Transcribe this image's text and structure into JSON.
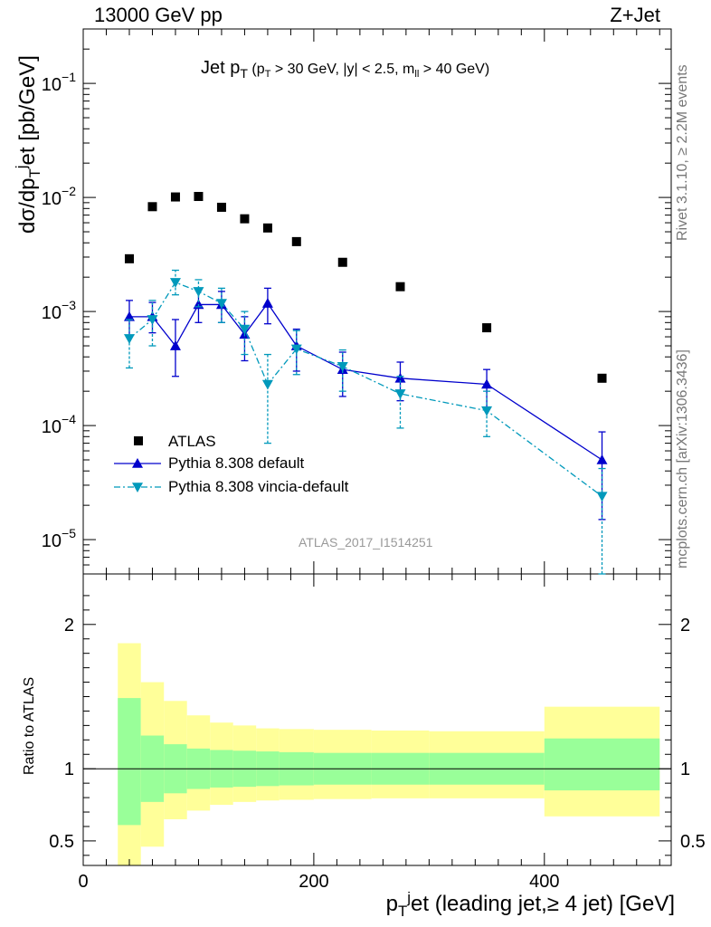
{
  "header": {
    "energy_label": "13000 GeV pp",
    "process_label": "Z+Jet"
  },
  "side_notes": {
    "rivet": "Rivet 3.1.10, ≥ 2.2M events",
    "mcplots": "mcplots.cern.ch [arXiv:1306.3436]"
  },
  "plot_title": {
    "main": "Jet p",
    "main_sub": "T",
    "cuts_open": " (p",
    "cuts_sub": "T",
    "cuts_rest": " > 30 GeV, |y| < 2.5, m",
    "cuts_sub2": "ll",
    "cuts_end": " > 40 GeV)"
  },
  "watermark": "ATLAS_2017_I1514251",
  "axis_labels": {
    "y_main": "dσ/dp",
    "y_main_sub": "T",
    "y_main_sup": "j",
    "y_main_rest": "et [pb/GeV]",
    "y_ratio": "Ratio to ATLAS",
    "x_pre": "p",
    "x_sub": "T",
    "x_sup": "j",
    "x_rest": "et (leading jet,≥ 4 jet) [GeV]"
  },
  "colors": {
    "atlas": "#000000",
    "pythia_default": "#0000cc",
    "pythia_vincia": "#0099bb",
    "band_inner": "#99ff99",
    "band_outer": "#ffff99"
  },
  "chart_data": [
    {
      "type": "scatter",
      "panel": "main",
      "yscale": "log",
      "xlim": [
        0,
        510
      ],
      "ylim": [
        5e-06,
        0.3
      ],
      "x_ticks": [
        0,
        200,
        400
      ],
      "y_ticks": [
        {
          "value": 1e-05,
          "base": "10",
          "exp": "−5"
        },
        {
          "value": 0.0001,
          "base": "10",
          "exp": "−4"
        },
        {
          "value": 0.001,
          "base": "10",
          "exp": "−3"
        },
        {
          "value": 0.01,
          "base": "10",
          "exp": "−2"
        },
        {
          "value": 0.1,
          "base": "10",
          "exp": "−1"
        }
      ],
      "series": [
        {
          "name": "ATLAS",
          "style": "square",
          "x": [
            40,
            60,
            80,
            100,
            120,
            140,
            160,
            185,
            225,
            275,
            350,
            450
          ],
          "y": [
            0.0029,
            0.0083,
            0.0101,
            0.0102,
            0.0082,
            0.0065,
            0.0054,
            0.0041,
            0.0027,
            0.00165,
            0.00072,
            0.00026
          ]
        },
        {
          "name": "Pythia 8.308 default",
          "style": "triangle-up-solid",
          "x": [
            40,
            60,
            80,
            100,
            120,
            140,
            160,
            185,
            225,
            275,
            350,
            450
          ],
          "y": [
            0.0009,
            0.0009,
            0.0005,
            0.00115,
            0.00115,
            0.00063,
            0.00118,
            0.0005,
            0.00031,
            0.00026,
            0.00023,
            5e-05
          ],
          "err_low": [
            0.0006,
            0.00065,
            0.00027,
            0.0008,
            0.0008,
            0.00037,
            0.00078,
            0.0003,
            0.00018,
            0.000165,
            0.000145,
            1.5e-05
          ],
          "err_high": [
            0.00125,
            0.0012,
            0.00085,
            0.00155,
            0.0015,
            0.0009,
            0.0016,
            0.0007,
            0.00044,
            0.00036,
            0.00031,
            8.8e-05
          ]
        },
        {
          "name": "Pythia 8.308 vincia-default",
          "style": "triangle-down-dashdot",
          "x": [
            40,
            60,
            80,
            100,
            120,
            140,
            160,
            185,
            225,
            275,
            350,
            450
          ],
          "y": [
            0.00058,
            0.00085,
            0.0018,
            0.0015,
            0.00118,
            0.0007,
            0.00023,
            0.00047,
            0.00033,
            0.00019,
            0.000135,
            2.4e-05
          ],
          "err_low": [
            0.00032,
            0.0005,
            0.0014,
            0.0011,
            0.0008,
            0.00042,
            7e-05,
            0.00028,
            0.0002,
            9.5e-05,
            8e-05,
            4e-06
          ],
          "err_high": [
            0.00085,
            0.00125,
            0.0023,
            0.0019,
            0.0016,
            0.001,
            0.00042,
            0.00068,
            0.00046,
            0.00027,
            0.0002,
            4.2e-05
          ]
        }
      ]
    },
    {
      "type": "area",
      "panel": "ratio",
      "xlim": [
        0,
        510
      ],
      "ylim": [
        0.33,
        2.35
      ],
      "x_ticks": [
        0,
        200,
        400
      ],
      "y_ticks": [
        0.5,
        1,
        2
      ],
      "reference_line": 1,
      "bins": [
        {
          "x0": 30,
          "x1": 50,
          "inner": [
            0.61,
            1.49
          ],
          "outer": [
            0.33,
            1.87
          ]
        },
        {
          "x0": 50,
          "x1": 70,
          "inner": [
            0.77,
            1.23
          ],
          "outer": [
            0.46,
            1.6
          ]
        },
        {
          "x0": 70,
          "x1": 90,
          "inner": [
            0.83,
            1.17
          ],
          "outer": [
            0.65,
            1.47
          ]
        },
        {
          "x0": 90,
          "x1": 110,
          "inner": [
            0.86,
            1.14
          ],
          "outer": [
            0.71,
            1.37
          ]
        },
        {
          "x0": 110,
          "x1": 130,
          "inner": [
            0.87,
            1.13
          ],
          "outer": [
            0.75,
            1.32
          ]
        },
        {
          "x0": 130,
          "x1": 150,
          "inner": [
            0.875,
            1.125
          ],
          "outer": [
            0.77,
            1.3
          ]
        },
        {
          "x0": 150,
          "x1": 170,
          "inner": [
            0.88,
            1.12
          ],
          "outer": [
            0.78,
            1.28
          ]
        },
        {
          "x0": 170,
          "x1": 200,
          "inner": [
            0.885,
            1.115
          ],
          "outer": [
            0.785,
            1.275
          ]
        },
        {
          "x0": 200,
          "x1": 250,
          "inner": [
            0.89,
            1.11
          ],
          "outer": [
            0.79,
            1.27
          ]
        },
        {
          "x0": 250,
          "x1": 300,
          "inner": [
            0.89,
            1.11
          ],
          "outer": [
            0.795,
            1.265
          ]
        },
        {
          "x0": 300,
          "x1": 400,
          "inner": [
            0.89,
            1.11
          ],
          "outer": [
            0.795,
            1.26
          ]
        },
        {
          "x0": 400,
          "x1": 500,
          "inner": [
            0.85,
            1.21
          ],
          "outer": [
            0.67,
            1.43
          ]
        }
      ]
    }
  ],
  "legend": {
    "items": [
      "ATLAS",
      "Pythia 8.308 default",
      "Pythia 8.308 vincia-default"
    ]
  }
}
